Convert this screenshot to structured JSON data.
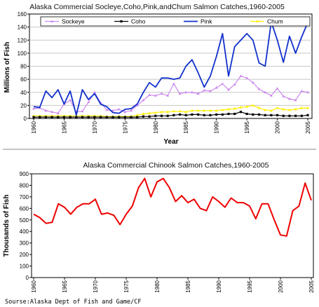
{
  "source_note": "Sourse:Alaska Dept of Fish and Game/CF",
  "chart_data": [
    {
      "type": "line",
      "title": "Alaska Commercial Socleye,Coho,Pink,andChum Salmon Catches,1960-2005",
      "xlabel": "Year",
      "ylabel": "Millions of Fish",
      "xlim": [
        1960,
        2005
      ],
      "ylim": [
        0,
        160
      ],
      "yticks": [
        0,
        20,
        40,
        60,
        80,
        100,
        120,
        140,
        160
      ],
      "xticks": [
        1960,
        1965,
        1970,
        1975,
        1980,
        1985,
        1990,
        1995,
        2000,
        2005
      ],
      "grid": "horizontal",
      "legend": "top",
      "x": [
        1960,
        1961,
        1962,
        1963,
        1964,
        1965,
        1966,
        1967,
        1968,
        1969,
        1970,
        1971,
        1972,
        1973,
        1974,
        1975,
        1976,
        1977,
        1978,
        1979,
        1980,
        1981,
        1982,
        1983,
        1984,
        1985,
        1986,
        1987,
        1988,
        1989,
        1990,
        1991,
        1992,
        1993,
        1994,
        1995,
        1996,
        1997,
        1998,
        1999,
        2000,
        2001,
        2002,
        2003,
        2004,
        2005
      ],
      "series": [
        {
          "name": "Sockeye",
          "color": "#cc88ee",
          "marker": "triangle",
          "values": [
            15,
            16,
            12,
            10,
            8,
            22,
            28,
            10,
            11,
            25,
            40,
            24,
            13,
            12,
            14,
            10,
            12,
            20,
            28,
            36,
            35,
            38,
            35,
            53,
            38,
            40,
            40,
            38,
            43,
            42,
            47,
            53,
            44,
            52,
            65,
            62,
            55,
            45,
            40,
            35,
            46,
            34,
            30,
            28,
            42,
            40
          ]
        },
        {
          "name": "Coho",
          "color": "#000000",
          "marker": "square",
          "values": [
            2,
            2,
            2,
            2,
            2,
            2,
            2,
            2,
            2,
            2,
            2,
            2,
            2,
            2,
            2,
            2,
            2,
            2,
            3,
            3,
            4,
            4,
            4,
            5,
            6,
            5,
            6,
            6,
            5,
            5,
            6,
            6,
            7,
            7,
            10,
            7,
            6,
            6,
            5,
            5,
            5,
            4,
            4,
            4,
            4,
            5
          ]
        },
        {
          "name": "Pink",
          "color": "#1030cc",
          "marker": "none",
          "values": [
            18,
            17,
            42,
            32,
            44,
            22,
            42,
            5,
            44,
            29,
            38,
            22,
            18,
            9,
            8,
            14,
            15,
            22,
            40,
            55,
            48,
            62,
            62,
            60,
            62,
            80,
            90,
            70,
            48,
            65,
            95,
            130,
            65,
            110,
            120,
            130,
            120,
            85,
            80,
            148,
            120,
            86,
            126,
            100,
            125,
            147
          ]
        },
        {
          "name": "Chum",
          "color": "#ffee00",
          "marker": "triangle",
          "values": [
            4,
            4,
            4,
            4,
            4,
            4,
            4,
            4,
            4,
            4,
            4,
            4,
            3,
            3,
            3,
            3,
            3,
            5,
            7,
            8,
            9,
            10,
            10,
            11,
            11,
            10,
            12,
            12,
            12,
            12,
            12,
            13,
            14,
            15,
            17,
            18,
            20,
            16,
            13,
            12,
            16,
            14,
            13,
            14,
            16,
            16
          ]
        }
      ]
    },
    {
      "type": "line",
      "title": "Alaska Commercial Chinook Salmon Catches,1960-2005",
      "xlabel": "Year",
      "ylabel": "Thousands of Fish",
      "xlim": [
        1960,
        2005
      ],
      "ylim": [
        0,
        900
      ],
      "yticks": [
        0,
        100,
        200,
        300,
        400,
        500,
        600,
        700,
        800,
        900
      ],
      "xticks": [
        1960,
        1965,
        1970,
        1975,
        1980,
        1985,
        1990,
        1995,
        2000,
        2005
      ],
      "grid": "none",
      "series": [
        {
          "name": "Chinook",
          "color": "#ee0000",
          "marker": "none",
          "x": [
            1960,
            1961,
            1962,
            1963,
            1964,
            1965,
            1966,
            1967,
            1968,
            1969,
            1970,
            1971,
            1972,
            1973,
            1974,
            1975,
            1976,
            1977,
            1978,
            1979,
            1980,
            1981,
            1982,
            1983,
            1984,
            1985,
            1986,
            1987,
            1988,
            1989,
            1990,
            1991,
            1992,
            1993,
            1994,
            1995,
            1996,
            1997,
            1998,
            1999,
            2000,
            2001,
            2002,
            2003,
            2004,
            2005
          ],
          "values": [
            550,
            520,
            470,
            480,
            640,
            610,
            550,
            610,
            640,
            640,
            680,
            550,
            560,
            540,
            460,
            550,
            620,
            780,
            860,
            700,
            830,
            860,
            780,
            660,
            710,
            650,
            680,
            600,
            580,
            700,
            660,
            610,
            690,
            650,
            650,
            620,
            510,
            640,
            640,
            500,
            370,
            360,
            580,
            620,
            820,
            670
          ]
        }
      ]
    }
  ]
}
